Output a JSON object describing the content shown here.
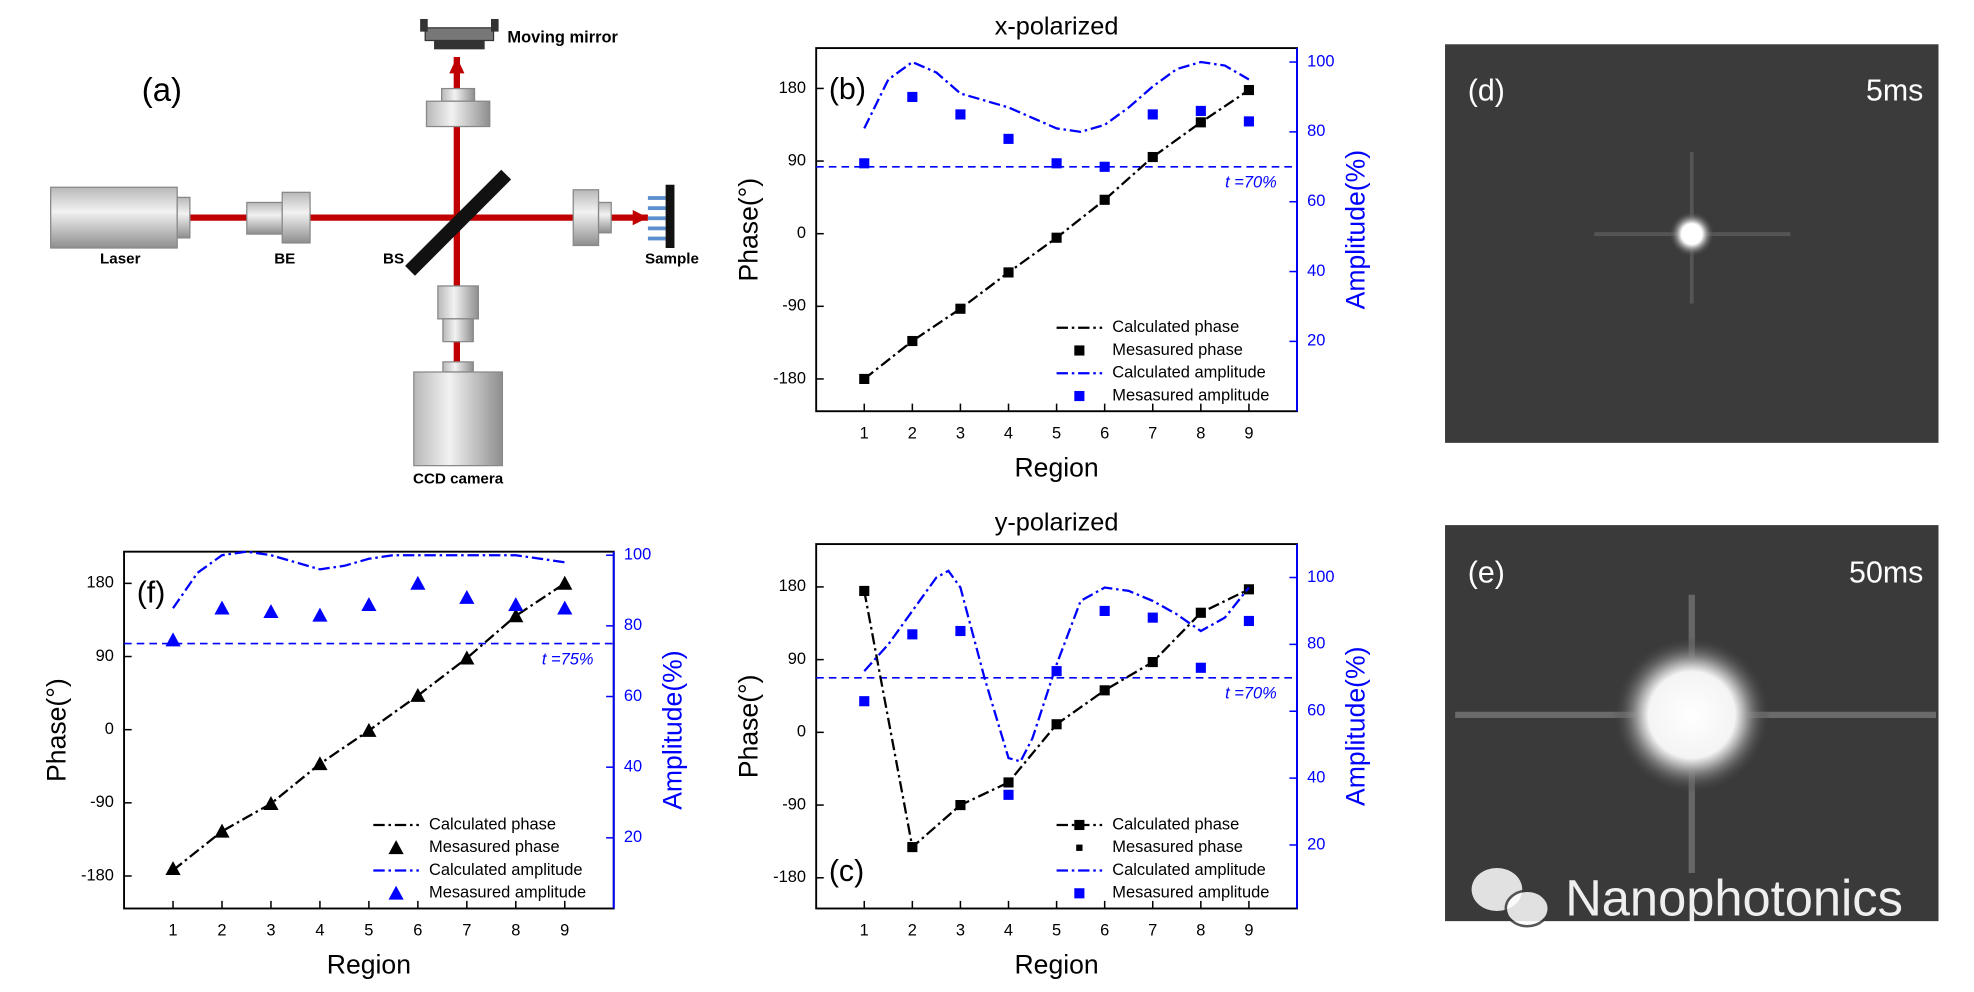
{
  "chart_data": [
    {
      "type": "line",
      "title": "x-polarized",
      "panel": "(b)",
      "panel_corner": "upper left",
      "xlabel": "Region",
      "ylabel": "Phase(°)",
      "y2label": "Amplitude(%)",
      "xlim": [
        0,
        10
      ],
      "xticks": [
        1,
        2,
        3,
        4,
        5,
        6,
        7,
        8,
        9
      ],
      "ylim": [
        -220,
        230
      ],
      "yticks": [
        -180,
        -90,
        0,
        90,
        180
      ],
      "y2lim": [
        0,
        104
      ],
      "y2ticks": [
        20,
        40,
        60,
        80,
        100
      ],
      "threshold": {
        "value": 70,
        "label": "t =70%",
        "axis": "y2",
        "color": "#0000ff"
      },
      "legend": "lower right",
      "series": [
        {
          "name": "Calculated phase",
          "color": "#000000",
          "style": "dash-dot",
          "x": [
            1,
            2,
            3,
            4,
            5,
            6,
            7,
            8,
            9
          ],
          "values": [
            -180,
            -133,
            -93,
            -48,
            -5,
            42,
            95,
            138,
            178
          ]
        },
        {
          "name": "Mesasured phase",
          "color": "#000000",
          "marker": "square",
          "x": [
            1,
            2,
            3,
            4,
            5,
            6,
            7,
            8,
            9
          ],
          "values": [
            -180,
            -133,
            -93,
            -48,
            -5,
            42,
            95,
            138,
            178
          ]
        },
        {
          "name": "Calculated amplitude",
          "color": "#0000ff",
          "style": "dash-dot",
          "axis": "y2",
          "x": [
            1,
            1.5,
            2,
            2.5,
            3,
            3.5,
            4,
            4.5,
            5,
            5.5,
            6,
            6.5,
            7,
            7.5,
            8,
            8.5,
            9
          ],
          "values": [
            81,
            95,
            100,
            97,
            91,
            89,
            87,
            84,
            81,
            80,
            82,
            87,
            93,
            98,
            100,
            99,
            95
          ]
        },
        {
          "name": "Mesasured amplitude",
          "color": "#0000ff",
          "marker": "square",
          "axis": "y2",
          "x": [
            1,
            2,
            3,
            4,
            5,
            6,
            7,
            8,
            9
          ],
          "values": [
            71,
            90,
            85,
            78,
            71,
            70,
            85,
            86,
            83
          ]
        }
      ]
    },
    {
      "type": "line",
      "title": "y-polarized",
      "panel": "(c)",
      "panel_corner": "lower left",
      "xlabel": "Region",
      "ylabel": "Phase(°)",
      "y2label": "Amplitude(%)",
      "xlim": [
        0,
        10
      ],
      "xticks": [
        1,
        2,
        3,
        4,
        5,
        6,
        7,
        8,
        9
      ],
      "ylim": [
        -218,
        233
      ],
      "yticks": [
        -180,
        -90,
        0,
        90,
        180
      ],
      "y2lim": [
        1,
        110
      ],
      "y2ticks": [
        20,
        40,
        60,
        80,
        100
      ],
      "threshold": {
        "value": 70,
        "label": "t =70%",
        "axis": "y2",
        "color": "#0000ff"
      },
      "legend": "lower right",
      "series": [
        {
          "name": "Calculated phase",
          "color": "#000000",
          "style": "dash-dot",
          "marker": "square",
          "x": [
            1,
            2,
            3,
            4,
            5,
            6,
            7,
            8,
            9
          ],
          "values": [
            175,
            -142,
            -90,
            -62,
            10,
            52,
            87,
            148,
            177
          ]
        },
        {
          "name": "Mesasured phase",
          "color": "#000000",
          "marker": "small-square",
          "x": [
            1,
            2,
            3,
            4,
            5,
            6,
            7,
            8,
            9
          ],
          "values": [
            175,
            -142,
            -90,
            -62,
            10,
            52,
            87,
            148,
            177
          ]
        },
        {
          "name": "Calculated amplitude",
          "color": "#0000ff",
          "style": "dash-dot",
          "axis": "y2",
          "x": [
            1,
            1.5,
            2,
            2.5,
            2.75,
            3,
            3.5,
            4,
            4.25,
            4.5,
            5,
            5.5,
            6,
            6.5,
            7,
            7.5,
            8,
            8.5,
            9
          ],
          "values": [
            72,
            80,
            90,
            100,
            102,
            97,
            70,
            46,
            45,
            52,
            74,
            93,
            97,
            96,
            93,
            89,
            84,
            88,
            97
          ]
        },
        {
          "name": "Mesasured amplitude",
          "color": "#0000ff",
          "marker": "square",
          "axis": "y2",
          "x": [
            1,
            2,
            3,
            4,
            5,
            6,
            7,
            8,
            9
          ],
          "values": [
            63,
            83,
            84,
            35,
            72,
            90,
            88,
            73,
            87
          ]
        }
      ]
    },
    {
      "type": "line",
      "panel": "(f)",
      "panel_corner": "upper left",
      "xlabel": "Region",
      "ylabel": "Phase(°)",
      "y2label": "Amplitude(%)",
      "xlim": [
        0,
        10
      ],
      "xticks": [
        1,
        2,
        3,
        4,
        5,
        6,
        7,
        8,
        9
      ],
      "ylim": [
        -220,
        219
      ],
      "yticks": [
        -180,
        -90,
        0,
        90,
        180
      ],
      "y2lim": [
        0,
        101
      ],
      "y2ticks": [
        20,
        40,
        60,
        80,
        100
      ],
      "threshold": {
        "value": 75,
        "label": "t =75%",
        "axis": "y2",
        "color": "#0000ff"
      },
      "legend": "lower right",
      "series": [
        {
          "name": "Calculated phase",
          "color": "#000000",
          "style": "dash-dot",
          "x": [
            1,
            2,
            3,
            4,
            5,
            6,
            7,
            8,
            9
          ],
          "values": [
            -173,
            -125,
            -91,
            -42,
            -1,
            42,
            88,
            140,
            180
          ]
        },
        {
          "name": "Mesasured phase",
          "color": "#000000",
          "marker": "triangle",
          "x": [
            1,
            2,
            3,
            4,
            5,
            6,
            7,
            8,
            9
          ],
          "values": [
            -171,
            -125,
            -91,
            -42,
            -1,
            42,
            88,
            140,
            180
          ]
        },
        {
          "name": "Calculated amplitude",
          "color": "#0000ff",
          "style": "dash-dot",
          "axis": "y2",
          "x": [
            1,
            1.5,
            2,
            2.5,
            3,
            3.5,
            4,
            4.5,
            5,
            5.5,
            6,
            7,
            8,
            8.5,
            9
          ],
          "values": [
            85,
            95,
            100,
            101,
            100,
            98,
            96,
            97,
            99,
            100,
            100,
            100,
            100,
            99,
            98
          ]
        },
        {
          "name": "Mesasured amplitude",
          "color": "#0000ff",
          "marker": "triangle",
          "axis": "y2",
          "x": [
            1,
            2,
            3,
            4,
            5,
            6,
            7,
            8,
            9
          ],
          "values": [
            76,
            85,
            84,
            83,
            86,
            92,
            88,
            86,
            85
          ]
        }
      ]
    }
  ],
  "diagram": {
    "panel": "(a)",
    "labels": [
      "Moving mirror",
      "Laser",
      "BE",
      "BS",
      "Sample",
      "CCD camera"
    ]
  },
  "images": [
    {
      "panel": "(d)",
      "exposure": "5ms"
    },
    {
      "panel": "(e)",
      "exposure": "50ms"
    }
  ],
  "watermark": "Nanophotonics"
}
